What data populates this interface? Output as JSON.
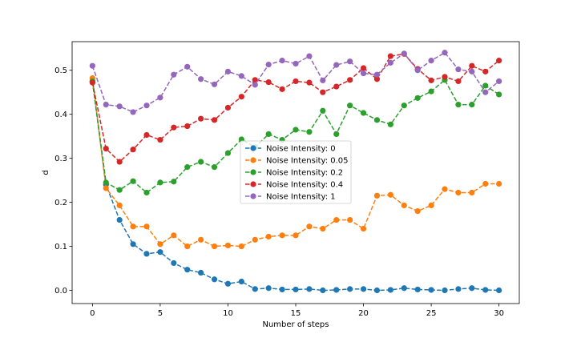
{
  "chart_data": {
    "type": "line",
    "title": "",
    "xlabel": "Number of steps",
    "ylabel": "d",
    "xlim": [
      -1.5,
      31.5
    ],
    "ylim": [
      -0.03,
      0.565
    ],
    "xticks": [
      0,
      5,
      10,
      15,
      20,
      25,
      30
    ],
    "yticks": [
      0.0,
      0.1,
      0.2,
      0.3,
      0.4,
      0.5
    ],
    "xtick_labels": [
      "0",
      "5",
      "10",
      "15",
      "20",
      "25",
      "30"
    ],
    "ytick_labels": [
      "0.0",
      "0.1",
      "0.2",
      "0.3",
      "0.4",
      "0.5"
    ],
    "grid": false,
    "legend_position": "center",
    "line_style": "dashed",
    "marker": "circle",
    "x": [
      0,
      1,
      2,
      3,
      4,
      5,
      6,
      7,
      8,
      9,
      10,
      11,
      12,
      13,
      14,
      15,
      16,
      17,
      18,
      19,
      20,
      21,
      22,
      23,
      24,
      25,
      26,
      27,
      28,
      29,
      30
    ],
    "series": [
      {
        "name": "Noise Intensity: 0",
        "color": "#1f77b4",
        "values": [
          0.475,
          0.24,
          0.16,
          0.105,
          0.083,
          0.087,
          0.062,
          0.047,
          0.04,
          0.025,
          0.015,
          0.02,
          0.003,
          0.005,
          0.002,
          0.002,
          0.003,
          0.0,
          0.001,
          0.003,
          0.003,
          0.0,
          0.001,
          0.005,
          0.002,
          0.001,
          0.0,
          0.003,
          0.005,
          0.001,
          0.0
        ]
      },
      {
        "name": "Noise Intensity: 0.05",
        "color": "#ff7f0e",
        "values": [
          0.482,
          0.232,
          0.193,
          0.145,
          0.145,
          0.105,
          0.125,
          0.1,
          0.115,
          0.1,
          0.102,
          0.1,
          0.115,
          0.122,
          0.125,
          0.125,
          0.145,
          0.14,
          0.16,
          0.16,
          0.14,
          0.215,
          0.217,
          0.193,
          0.18,
          0.193,
          0.23,
          0.222,
          0.222,
          0.242,
          0.242
        ]
      },
      {
        "name": "Noise Intensity: 0.2",
        "color": "#2ca02c",
        "values": [
          0.475,
          0.245,
          0.228,
          0.248,
          0.222,
          0.245,
          0.247,
          0.28,
          0.292,
          0.28,
          0.312,
          0.343,
          0.325,
          0.355,
          0.342,
          0.365,
          0.36,
          0.408,
          0.355,
          0.42,
          0.403,
          0.387,
          0.377,
          0.42,
          0.437,
          0.452,
          0.478,
          0.422,
          0.422,
          0.465,
          0.445
        ]
      },
      {
        "name": "Noise Intensity: 0.4",
        "color": "#d62728",
        "values": [
          0.472,
          0.322,
          0.292,
          0.32,
          0.353,
          0.342,
          0.37,
          0.373,
          0.39,
          0.387,
          0.415,
          0.44,
          0.478,
          0.473,
          0.457,
          0.475,
          0.472,
          0.45,
          0.463,
          0.478,
          0.505,
          0.48,
          0.532,
          0.537,
          0.503,
          0.477,
          0.485,
          0.475,
          0.51,
          0.497,
          0.522
        ]
      },
      {
        "name": "Noise Intensity: 1",
        "color": "#9467bd",
        "values": [
          0.51,
          0.422,
          0.418,
          0.405,
          0.42,
          0.438,
          0.49,
          0.508,
          0.48,
          0.468,
          0.497,
          0.487,
          0.467,
          0.513,
          0.522,
          0.515,
          0.532,
          0.477,
          0.512,
          0.52,
          0.493,
          0.49,
          0.517,
          0.538,
          0.5,
          0.522,
          0.54,
          0.502,
          0.497,
          0.45,
          0.475
        ]
      }
    ]
  }
}
